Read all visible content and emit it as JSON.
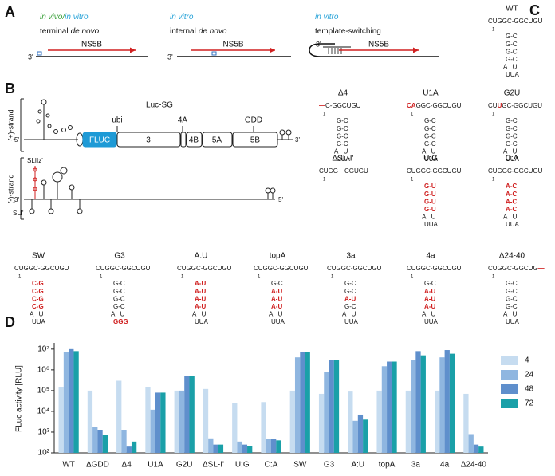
{
  "panel_labels": [
    "A",
    "B",
    "C",
    "D"
  ],
  "panel_a": {
    "items": [
      {
        "title": [
          {
            "text": "in vivo",
            "color": "#3aa03a"
          },
          {
            "text": "/",
            "color": "#3aa03a"
          },
          {
            "text": "in vitro",
            "color": "#29a3d8"
          }
        ],
        "subtitle": [
          {
            "text": "terminal",
            "italic": false
          },
          {
            "text": "de novo",
            "italic": true
          }
        ],
        "enzyme": "NS5B",
        "end": "3'"
      },
      {
        "title": [
          {
            "text": "in vitro",
            "color": "#29a3d8"
          }
        ],
        "subtitle": [
          {
            "text": "internal",
            "italic": false
          },
          {
            "text": "de novo",
            "italic": true
          }
        ],
        "enzyme": "NS5B",
        "end": "3'"
      },
      {
        "title": [
          {
            "text": "in vitro",
            "color": "#29a3d8"
          }
        ],
        "subtitle": [
          {
            "text": "template-switching",
            "italic": false
          }
        ],
        "enzyme": "NS5B",
        "end": "3'"
      }
    ]
  },
  "panel_b": {
    "plus_strand": "(+)-strand",
    "minus_strand": "(-)-strand",
    "construct": "Luc-SG",
    "genes": [
      "FLUC",
      "3",
      "4B",
      "5A",
      "5B"
    ],
    "markers": [
      "ubi",
      "4A",
      "GDD"
    ],
    "ends": [
      "5'",
      "3'",
      "3'",
      "5'"
    ],
    "elements": [
      "SLIIz'",
      "SLI'"
    ]
  },
  "structures": [
    {
      "name": "WT",
      "lines": [
        [
          "CUGGC-GGCUGU"
        ],
        [
          "1"
        ],
        [
          "G-C"
        ],
        [
          "G-C"
        ],
        [
          "G-C"
        ],
        [
          "G-C"
        ],
        [
          "A   U"
        ],
        [
          "UUA"
        ]
      ]
    },
    {
      "name": "Δ4",
      "lines": [
        [
          {
            "red": "—"
          },
          "C-GGCUGU"
        ],
        [
          "1"
        ],
        [
          "G-C"
        ],
        [
          "G-C"
        ],
        [
          "G-C"
        ],
        [
          "G-C"
        ],
        [
          "A   U"
        ],
        [
          "UUA"
        ]
      ]
    },
    {
      "name": "U1A",
      "lines": [
        [
          {
            "red": "CA"
          },
          "GGC-GGCUGU"
        ],
        [
          "1"
        ],
        [
          "G-C"
        ],
        [
          "G-C"
        ],
        [
          "G-C"
        ],
        [
          "G-C"
        ],
        [
          "A   U"
        ],
        [
          "UUA"
        ]
      ]
    },
    {
      "name": "G2U",
      "lines": [
        [
          "CU",
          {
            "red": "U"
          },
          "GC-GGCUGU"
        ],
        [
          "1"
        ],
        [
          "G-C"
        ],
        [
          "G-C"
        ],
        [
          "G-C"
        ],
        [
          "G-C"
        ],
        [
          "A   U"
        ],
        [
          "UUA"
        ]
      ]
    },
    {
      "name": "ΔSL-I'",
      "lines": [
        [
          "CUGG",
          {
            "red": "—"
          },
          "CGUGU"
        ],
        [
          "1"
        ]
      ]
    },
    {
      "name": "U:G",
      "lines": [
        [
          "CUGGC-GGCUGU"
        ],
        [
          "1"
        ],
        [
          {
            "red": "G-U"
          }
        ],
        [
          {
            "red": "G-U"
          }
        ],
        [
          {
            "red": "G-U"
          }
        ],
        [
          {
            "red": "G-U"
          }
        ],
        [
          "A   U"
        ],
        [
          "UUA"
        ]
      ]
    },
    {
      "name": "C:A",
      "lines": [
        [
          "CUGGC-GGCUGU"
        ],
        [
          "1"
        ],
        [
          {
            "red": "A-C"
          }
        ],
        [
          {
            "red": "A-C"
          }
        ],
        [
          {
            "red": "A-C"
          }
        ],
        [
          {
            "red": "A-C"
          }
        ],
        [
          "A   U"
        ],
        [
          "UUA"
        ]
      ]
    },
    {
      "name": "SW",
      "lines": [
        [
          "CUGGC-GGCUGU"
        ],
        [
          "1"
        ],
        [
          {
            "red": "C-G"
          }
        ],
        [
          {
            "red": "C-G"
          }
        ],
        [
          {
            "red": "C-G"
          }
        ],
        [
          {
            "red": "C-G"
          }
        ],
        [
          "A   U"
        ],
        [
          "UUA"
        ]
      ]
    },
    {
      "name": "G3",
      "lines": [
        [
          "CUGGC-GGCUGU"
        ],
        [
          "1"
        ],
        [
          "G-C"
        ],
        [
          "G-C"
        ],
        [
          "G-C"
        ],
        [
          "G-C"
        ],
        [
          "A   U"
        ],
        [
          {
            "red": "GGG"
          }
        ]
      ]
    },
    {
      "name": "A:U",
      "lines": [
        [
          "CUGGC-GGCUGU"
        ],
        [
          "1"
        ],
        [
          {
            "red": "A-U"
          }
        ],
        [
          {
            "red": "A-U"
          }
        ],
        [
          {
            "red": "A-U"
          }
        ],
        [
          {
            "red": "A-U"
          }
        ],
        [
          "A   U"
        ],
        [
          "UUA"
        ]
      ]
    },
    {
      "name": "topA",
      "lines": [
        [
          "CUGGC-GGCUGU"
        ],
        [
          "1"
        ],
        [
          "G-C"
        ],
        [
          {
            "red": "A-U"
          }
        ],
        [
          {
            "red": "A-U"
          }
        ],
        [
          {
            "red": "A-U"
          }
        ],
        [
          "A   U"
        ],
        [
          "UUA"
        ]
      ]
    },
    {
      "name": "3a",
      "lines": [
        [
          "CUGGC-GGCUGU"
        ],
        [
          "1"
        ],
        [
          "G-C"
        ],
        [
          "G-C"
        ],
        [
          {
            "red": "A-U"
          }
        ],
        [
          "G-C"
        ],
        [
          "A   U"
        ],
        [
          "UUA"
        ]
      ]
    },
    {
      "name": "4a",
      "lines": [
        [
          "CUGGC-GGCUGU"
        ],
        [
          "1"
        ],
        [
          "G-C"
        ],
        [
          {
            "red": "A-U"
          }
        ],
        [
          {
            "red": "A-U"
          }
        ],
        [
          {
            "red": "A-U"
          }
        ],
        [
          "A   U"
        ],
        [
          "UUA"
        ]
      ]
    },
    {
      "name": "Δ24-40",
      "lines": [
        [
          "CUGGC-GGCUG",
          {
            "red": "—"
          }
        ],
        [
          "1"
        ],
        [
          "G-C"
        ],
        [
          "G-C"
        ],
        [
          "G-C"
        ],
        [
          "G-C"
        ],
        [
          "A   U"
        ],
        [
          "UUA"
        ]
      ]
    }
  ],
  "chart_data": {
    "type": "bar",
    "y_label": "FLuc activity [RLU]",
    "log_scale": true,
    "legend": "right",
    "categories": [
      "WT",
      "ΔGDD",
      "Δ4",
      "U1A",
      "G2U",
      "ΔSL-I'",
      "U:G",
      "C:A",
      "SW",
      "G3",
      "A:U",
      "topA",
      "3a",
      "4a",
      "Δ24-40"
    ],
    "ylim": [
      100,
      20000000
    ],
    "yticks": [
      {
        "value": 100,
        "label": "10²"
      },
      {
        "value": 1000,
        "label": "10³"
      },
      {
        "value": 10000,
        "label": "10⁴"
      },
      {
        "value": 100000,
        "label": "10⁵"
      },
      {
        "value": 1000000,
        "label": "10⁶"
      },
      {
        "value": 10000000,
        "label": "10⁷"
      }
    ],
    "series": [
      {
        "name": "4",
        "color": "#c6dcf0",
        "values": [
          150000,
          100000,
          300000,
          150000,
          100000,
          120000,
          25000,
          28000,
          100000,
          70000,
          90000,
          100000,
          100000,
          100000,
          70000
        ]
      },
      {
        "name": "24",
        "color": "#8fb6e0",
        "values": [
          7000000,
          1800,
          1300,
          12000,
          100000,
          500,
          350,
          450,
          4000000,
          800000,
          3500,
          1500000,
          3000000,
          4000000,
          800
        ]
      },
      {
        "name": "48",
        "color": "#5f8fcc",
        "values": [
          10000000,
          1300,
          200,
          80000,
          500000,
          250,
          250,
          450,
          7000000,
          3000000,
          7000,
          2500000,
          8000000,
          9000000,
          250
        ]
      },
      {
        "name": "72",
        "color": "#1aa0a8",
        "values": [
          8000000,
          700,
          350,
          80000,
          500000,
          250,
          220,
          400,
          7000000,
          3000000,
          4000,
          2500000,
          5000000,
          6000000,
          200
        ]
      }
    ]
  }
}
